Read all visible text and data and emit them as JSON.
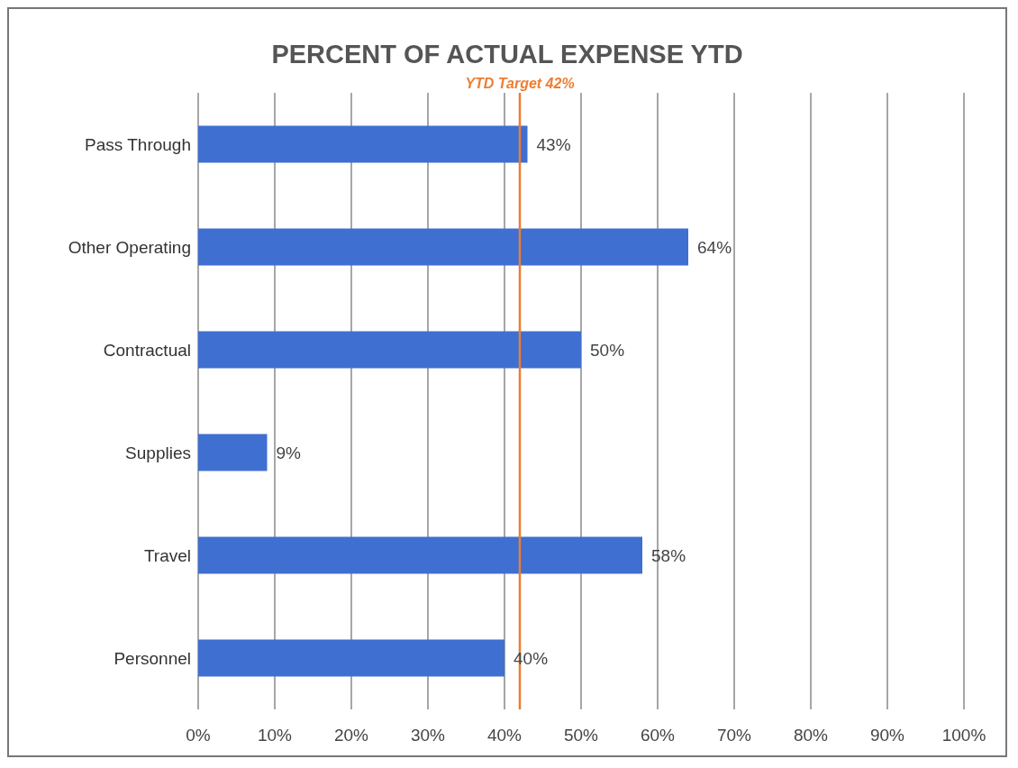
{
  "chart_data": {
    "type": "bar",
    "orientation": "horizontal",
    "title": "PERCENT OF ACTUAL EXPENSE YTD",
    "categories": [
      "Pass Through",
      "Other Operating",
      "Contractual",
      "Supplies",
      "Travel",
      "Personnel"
    ],
    "values": [
      43,
      64,
      50,
      9,
      58,
      40
    ],
    "value_labels": [
      "43%",
      "64%",
      "50%",
      "9%",
      "58%",
      "40%"
    ],
    "color": "#3f6fd0",
    "xlim": [
      0,
      100
    ],
    "xticks": [
      {
        "value": 0,
        "label": "0%"
      },
      {
        "value": 10,
        "label": "10%"
      },
      {
        "value": 20,
        "label": "20%"
      },
      {
        "value": 30,
        "label": "30%"
      },
      {
        "value": 40,
        "label": "40%"
      },
      {
        "value": 50,
        "label": "50%"
      },
      {
        "value": 60,
        "label": "60%"
      },
      {
        "value": 70,
        "label": "70%"
      },
      {
        "value": 80,
        "label": "80%"
      },
      {
        "value": 90,
        "label": "90%"
      },
      {
        "value": 100,
        "label": "100%"
      }
    ],
    "grid": "x",
    "ref_lines": [
      {
        "axis": "x",
        "value": 42,
        "label": "YTD Target 42%",
        "color": "#ed7d31"
      }
    ]
  }
}
